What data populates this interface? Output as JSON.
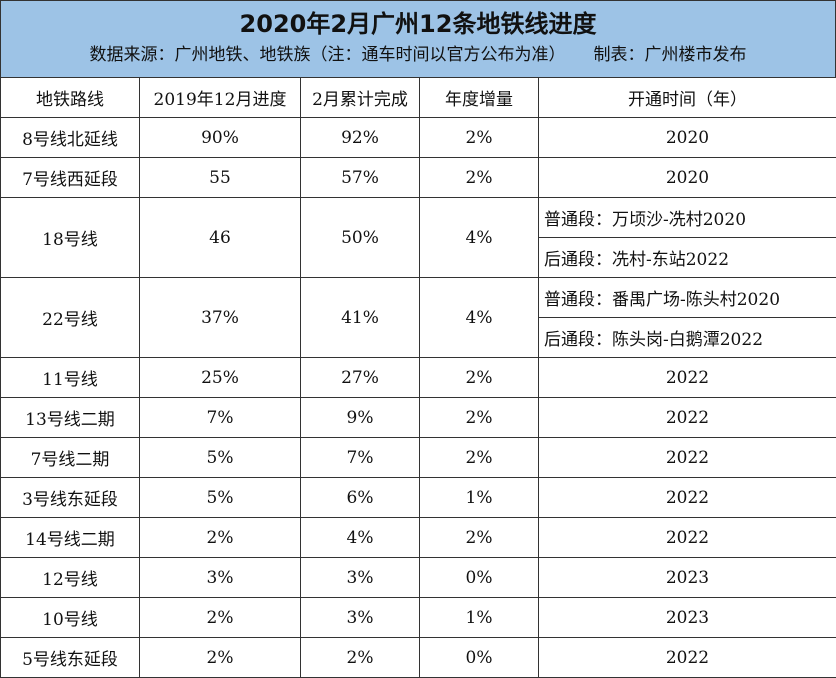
{
  "header": {
    "title": "2020年2月广州12条地铁线进度",
    "source": "数据来源：广州地铁、地铁族（注：通车时间以官方公布为准）",
    "maker": "制表：广州楼市发布"
  },
  "columns": [
    "地铁路线",
    "2019年12月进度",
    "2月累计完成",
    "年度增量",
    "开通时间（年）"
  ],
  "rows": [
    {
      "line": "8号线北延线",
      "dec2019": "90%",
      "feb": "92%",
      "inc": "2%",
      "open": [
        "2020"
      ]
    },
    {
      "line": "7号线西延段",
      "dec2019": "55",
      "feb": "57%",
      "inc": "2%",
      "open": [
        "2020"
      ]
    },
    {
      "line": "18号线",
      "dec2019": "46",
      "feb": "50%",
      "inc": "4%",
      "open": [
        "普通段：万顷沙-冼村2020",
        "后通段：冼村-东站2022"
      ]
    },
    {
      "line": "22号线",
      "dec2019": "37%",
      "feb": "41%",
      "inc": "4%",
      "open": [
        "普通段：番禺广场-陈头村2020",
        "后通段：陈头岗-白鹅潭2022"
      ]
    },
    {
      "line": "11号线",
      "dec2019": "25%",
      "feb": "27%",
      "inc": "2%",
      "open": [
        "2022"
      ]
    },
    {
      "line": "13号线二期",
      "dec2019": "7%",
      "feb": "9%",
      "inc": "2%",
      "open": [
        "2022"
      ]
    },
    {
      "line": "7号线二期",
      "dec2019": "5%",
      "feb": "7%",
      "inc": "2%",
      "open": [
        "2022"
      ]
    },
    {
      "line": "3号线东延段",
      "dec2019": "5%",
      "feb": "6%",
      "inc": "1%",
      "open": [
        "2022"
      ]
    },
    {
      "line": "14号线二期",
      "dec2019": "2%",
      "feb": "4%",
      "inc": "2%",
      "open": [
        "2022"
      ]
    },
    {
      "line": "12号线",
      "dec2019": "3%",
      "feb": "3%",
      "inc": "0%",
      "open": [
        "2023"
      ]
    },
    {
      "line": "10号线",
      "dec2019": "2%",
      "feb": "3%",
      "inc": "1%",
      "open": [
        "2023"
      ]
    },
    {
      "line": "5号线东延段",
      "dec2019": "2%",
      "feb": "2%",
      "inc": "0%",
      "open": [
        "2022"
      ]
    }
  ]
}
